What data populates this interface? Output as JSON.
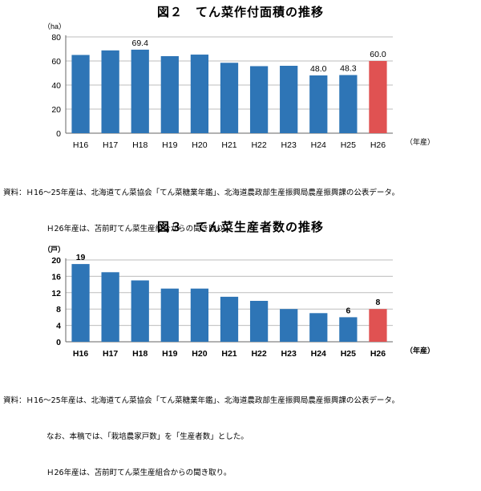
{
  "chart_data": [
    {
      "type": "bar",
      "title": "図２　てん菜作付面積の推移",
      "unit_label": "（ha）",
      "xunit_label": "（年産）",
      "categories": [
        "H16",
        "H17",
        "H18",
        "H19",
        "H20",
        "H21",
        "H22",
        "H23",
        "H24",
        "H25",
        "H26"
      ],
      "values": [
        65.0,
        68.8,
        69.4,
        64.0,
        65.3,
        58.5,
        55.7,
        56.0,
        48.0,
        48.3,
        60.0
      ],
      "data_labels": {
        "2": "69.4",
        "8": "48.0",
        "9": "48.3",
        "10": "60.0"
      },
      "bar_colors": {
        "default": "#2e75b6",
        "highlight": "#e05252"
      },
      "highlight_index": 10,
      "yticks": [
        "0",
        "20",
        "40",
        "60",
        "80"
      ],
      "ylim": [
        0,
        80
      ],
      "grid": true,
      "notes": [
        "資料：Ｈ16～25年産は、北海道てん菜協会「てん菜糖業年鑑」、北海道農政部生産振興局農産振興課の公表データ。",
        "Ｈ26年産は、苫前町てん菜生産組合からの聞き取り。"
      ]
    },
    {
      "type": "bar",
      "title": "図３　てん菜生産者数の推移",
      "unit_label": "（戸）",
      "xunit_label": "（年産）",
      "categories": [
        "H16",
        "H17",
        "H18",
        "H19",
        "H20",
        "H21",
        "H22",
        "H23",
        "H24",
        "H25",
        "H26"
      ],
      "values": [
        19,
        17,
        15,
        13,
        13,
        11,
        10,
        8,
        7,
        6,
        8
      ],
      "data_labels": {
        "0": "19",
        "9": "6",
        "10": "8"
      },
      "bar_colors": {
        "default": "#2e75b6",
        "highlight": "#e05252"
      },
      "highlight_index": 10,
      "yticks": [
        "0",
        "4",
        "8",
        "12",
        "16",
        "20"
      ],
      "ylim": [
        0,
        20
      ],
      "grid": true,
      "notes": [
        "資料：Ｈ16～25年産は、北海道てん菜協会「てん菜糖業年鑑」、北海道農政部生産振興局農産振興課の公表データ。",
        "なお、本稿では、「栽培農家戸数」を「生産者数」とした。",
        "Ｈ26年産は、苫前町てん菜生産組合からの聞き取り。"
      ]
    }
  ]
}
